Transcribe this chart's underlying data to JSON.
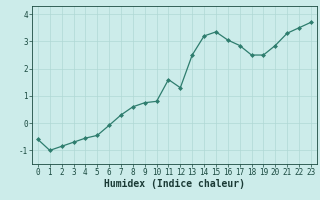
{
  "x": [
    0,
    1,
    2,
    3,
    4,
    5,
    6,
    7,
    8,
    9,
    10,
    11,
    12,
    13,
    14,
    15,
    16,
    17,
    18,
    19,
    20,
    21,
    22,
    23
  ],
  "y": [
    -0.6,
    -1.0,
    -0.85,
    -0.7,
    -0.55,
    -0.45,
    -0.08,
    0.3,
    0.6,
    0.75,
    0.8,
    1.6,
    1.3,
    2.5,
    3.2,
    3.35,
    3.05,
    2.85,
    2.5,
    2.5,
    2.85,
    3.3,
    3.5,
    3.7
  ],
  "line_color": "#2e7d6e",
  "marker": "D",
  "marker_size": 2.0,
  "line_width": 0.9,
  "bg_color": "#ccecea",
  "grid_color": "#b0d8d5",
  "tick_color": "#1a4a40",
  "xlabel": "Humidex (Indice chaleur)",
  "xlabel_fontsize": 7,
  "xlabel_fontweight": "bold",
  "xlabel_color": "#1a3a35",
  "ylim": [
    -1.5,
    4.3
  ],
  "xlim": [
    -0.5,
    23.5
  ],
  "yticks": [
    -1,
    0,
    1,
    2,
    3,
    4
  ],
  "xticks": [
    0,
    1,
    2,
    3,
    4,
    5,
    6,
    7,
    8,
    9,
    10,
    11,
    12,
    13,
    14,
    15,
    16,
    17,
    18,
    19,
    20,
    21,
    22,
    23
  ],
  "tick_fontsize": 5.5
}
